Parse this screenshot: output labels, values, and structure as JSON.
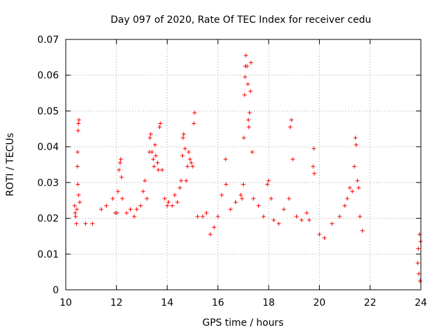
{
  "chart_data": {
    "type": "scatter",
    "title": "Day 097 of 2020, Rate Of TEC Index for receiver cedu",
    "xlabel": "GPS time / hours",
    "ylabel": "ROTI / TECUs",
    "xlim": [
      10,
      24
    ],
    "ylim": [
      0,
      0.07
    ],
    "x_ticks": [
      10,
      12,
      14,
      16,
      18,
      20,
      22,
      24
    ],
    "y_ticks": [
      0,
      0.01,
      0.02,
      0.03,
      0.04,
      0.05,
      0.06,
      0.07
    ],
    "x_tick_labels": [
      "10",
      "12",
      "14",
      "16",
      "18",
      "20",
      "22",
      "24"
    ],
    "y_tick_labels": [
      "0",
      "0.01",
      "0.02",
      "0.03",
      "0.04",
      "0.05",
      "0.06",
      "0.07"
    ],
    "grid": true,
    "legend": "none",
    "marker": "plus",
    "color": "#ff0000",
    "series": [
      {
        "points": [
          [
            10.35,
            0.0235
          ],
          [
            10.37,
            0.0215
          ],
          [
            10.39,
            0.0205
          ],
          [
            10.42,
            0.0185
          ],
          [
            10.44,
            0.0225
          ],
          [
            10.46,
            0.0345
          ],
          [
            10.47,
            0.0385
          ],
          [
            10.49,
            0.0445
          ],
          [
            10.5,
            0.0465
          ],
          [
            10.52,
            0.0475
          ],
          [
            10.48,
            0.0295
          ],
          [
            10.51,
            0.0265
          ],
          [
            10.55,
            0.0245
          ],
          [
            10.78,
            0.0185
          ],
          [
            11.05,
            0.0185
          ],
          [
            11.4,
            0.0225
          ],
          [
            11.6,
            0.0235
          ],
          [
            11.85,
            0.0255
          ],
          [
            11.95,
            0.0215
          ],
          [
            12.02,
            0.0215
          ],
          [
            12.06,
            0.0275
          ],
          [
            12.1,
            0.0335
          ],
          [
            12.14,
            0.0355
          ],
          [
            12.17,
            0.0365
          ],
          [
            12.2,
            0.0315
          ],
          [
            12.23,
            0.0255
          ],
          [
            12.4,
            0.0215
          ],
          [
            12.55,
            0.0225
          ],
          [
            12.7,
            0.0205
          ],
          [
            12.8,
            0.0225
          ],
          [
            12.95,
            0.0235
          ],
          [
            13.05,
            0.0275
          ],
          [
            13.12,
            0.0305
          ],
          [
            13.2,
            0.0255
          ],
          [
            13.3,
            0.0385
          ],
          [
            13.32,
            0.0425
          ],
          [
            13.35,
            0.0435
          ],
          [
            13.4,
            0.0385
          ],
          [
            13.45,
            0.0365
          ],
          [
            13.48,
            0.0345
          ],
          [
            13.52,
            0.0405
          ],
          [
            13.55,
            0.0375
          ],
          [
            13.62,
            0.0355
          ],
          [
            13.65,
            0.0335
          ],
          [
            13.7,
            0.0455
          ],
          [
            13.73,
            0.0465
          ],
          [
            13.8,
            0.0335
          ],
          [
            13.9,
            0.0255
          ],
          [
            14.0,
            0.0235
          ],
          [
            14.05,
            0.0245
          ],
          [
            14.2,
            0.0235
          ],
          [
            14.3,
            0.0265
          ],
          [
            14.4,
            0.0245
          ],
          [
            14.5,
            0.0285
          ],
          [
            14.55,
            0.0305
          ],
          [
            14.6,
            0.0375
          ],
          [
            14.62,
            0.0425
          ],
          [
            14.65,
            0.0435
          ],
          [
            14.7,
            0.0395
          ],
          [
            14.75,
            0.0305
          ],
          [
            14.8,
            0.0345
          ],
          [
            14.85,
            0.0385
          ],
          [
            14.9,
            0.0365
          ],
          [
            14.95,
            0.0355
          ],
          [
            15.0,
            0.0345
          ],
          [
            15.05,
            0.0465
          ],
          [
            15.08,
            0.0495
          ],
          [
            15.2,
            0.0205
          ],
          [
            15.4,
            0.0205
          ],
          [
            15.55,
            0.0215
          ],
          [
            15.7,
            0.0155
          ],
          [
            15.85,
            0.0175
          ],
          [
            16.0,
            0.0205
          ],
          [
            16.15,
            0.0265
          ],
          [
            16.3,
            0.0365
          ],
          [
            16.32,
            0.0295
          ],
          [
            16.5,
            0.0225
          ],
          [
            16.7,
            0.0245
          ],
          [
            16.9,
            0.0265
          ],
          [
            16.95,
            0.0255
          ],
          [
            17.0,
            0.0295
          ],
          [
            17.02,
            0.0425
          ],
          [
            17.05,
            0.0545
          ],
          [
            17.07,
            0.0595
          ],
          [
            17.08,
            0.0625
          ],
          [
            17.1,
            0.0655
          ],
          [
            17.15,
            0.0625
          ],
          [
            17.18,
            0.0575
          ],
          [
            17.2,
            0.0475
          ],
          [
            17.22,
            0.0455
          ],
          [
            17.25,
            0.0495
          ],
          [
            17.28,
            0.0555
          ],
          [
            17.3,
            0.0635
          ],
          [
            17.35,
            0.0385
          ],
          [
            17.4,
            0.0255
          ],
          [
            17.6,
            0.0235
          ],
          [
            17.8,
            0.0205
          ],
          [
            17.95,
            0.0295
          ],
          [
            18.0,
            0.0305
          ],
          [
            18.1,
            0.0255
          ],
          [
            18.2,
            0.0195
          ],
          [
            18.4,
            0.0185
          ],
          [
            18.6,
            0.0225
          ],
          [
            18.8,
            0.0255
          ],
          [
            18.85,
            0.0455
          ],
          [
            18.9,
            0.0475
          ],
          [
            18.95,
            0.0365
          ],
          [
            19.1,
            0.0205
          ],
          [
            19.3,
            0.0195
          ],
          [
            19.5,
            0.0215
          ],
          [
            19.6,
            0.0195
          ],
          [
            19.75,
            0.0345
          ],
          [
            19.78,
            0.0395
          ],
          [
            19.8,
            0.0325
          ],
          [
            20.0,
            0.0155
          ],
          [
            20.2,
            0.0145
          ],
          [
            20.5,
            0.0185
          ],
          [
            20.8,
            0.0205
          ],
          [
            21.0,
            0.0235
          ],
          [
            21.1,
            0.0255
          ],
          [
            21.2,
            0.0285
          ],
          [
            21.3,
            0.0275
          ],
          [
            21.38,
            0.0345
          ],
          [
            21.42,
            0.0425
          ],
          [
            21.45,
            0.0405
          ],
          [
            21.5,
            0.0305
          ],
          [
            21.55,
            0.0285
          ],
          [
            21.6,
            0.0205
          ],
          [
            21.7,
            0.0165
          ],
          [
            23.88,
            0.0075
          ],
          [
            23.9,
            0.0115
          ],
          [
            23.92,
            0.0045
          ],
          [
            23.95,
            0.0155
          ],
          [
            23.97,
            0.0025
          ],
          [
            23.99,
            0.0135
          ]
        ]
      }
    ]
  }
}
